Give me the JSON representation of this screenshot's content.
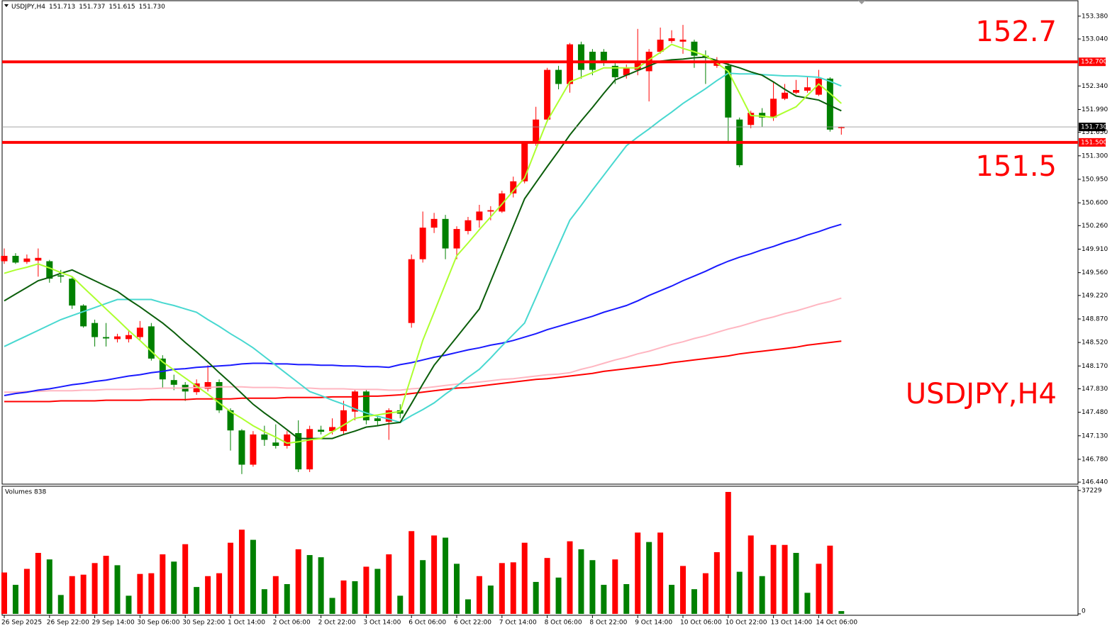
{
  "chart_data": [
    {
      "type": "candlestick",
      "title": "USDJPY,H4",
      "header_values": [
        "151.713",
        "151.737",
        "151.615",
        "151.730"
      ],
      "watermark": "USDJPY,H4",
      "categories": [
        "26 Sep 2025",
        null,
        null,
        null,
        "26 Sep 22:00",
        null,
        null,
        null,
        "29 Sep 14:00",
        null,
        null,
        null,
        "30 Sep 06:00",
        null,
        null,
        null,
        "30 Sep 22:00",
        null,
        null,
        null,
        "1 Oct 14:00",
        null,
        null,
        null,
        "2 Oct 06:00",
        null,
        null,
        null,
        "2 Oct 22:00",
        null,
        null,
        null,
        "3 Oct 14:00",
        null,
        null,
        null,
        "6 Oct 06:00",
        null,
        null,
        null,
        "6 Oct 22:00",
        null,
        null,
        null,
        "7 Oct 14:00",
        null,
        null,
        null,
        "8 Oct 06:00",
        null,
        null,
        null,
        "8 Oct 22:00",
        null,
        null,
        null,
        "9 Oct 14:00",
        null,
        null,
        null,
        "10 Oct 06:00",
        null,
        null,
        null,
        "10 Oct 22:00",
        null,
        null,
        null,
        "13 Oct 14:00",
        null,
        null,
        null,
        "14 Oct 06:00",
        null,
        null
      ],
      "open": [
        149.73,
        149.81,
        149.72,
        149.74,
        149.73,
        149.52,
        149.47,
        149.07,
        148.81,
        148.6,
        148.57,
        148.57,
        148.6,
        148.76,
        148.28,
        147.96,
        147.89,
        147.78,
        147.83,
        147.93,
        147.51,
        147.21,
        146.7,
        147.15,
        147.03,
        146.98,
        147.17,
        146.63,
        147.22,
        147.2,
        147.2,
        147.49,
        147.79,
        147.39,
        147.34,
        147.51,
        148.81,
        149.76,
        150.23,
        150.36,
        149.92,
        150.18,
        150.34,
        150.47,
        150.47,
        150.74,
        150.92,
        151.5,
        151.84,
        152.58,
        152.37,
        152.96,
        152.85,
        152.85,
        152.64,
        152.5,
        152.58,
        152.56,
        152.85,
        153.01,
        153.0,
        153.0,
        152.79,
        152.64,
        152.64,
        151.84,
        151.76,
        151.94,
        151.87,
        152.15,
        152.24,
        152.27,
        152.21,
        152.45,
        151.713
      ],
      "high": [
        149.92,
        149.85,
        149.83,
        149.92,
        149.75,
        149.6,
        149.5,
        149.09,
        148.86,
        148.81,
        148.65,
        148.7,
        148.84,
        148.81,
        148.33,
        148.04,
        147.93,
        147.97,
        148.18,
        147.97,
        147.54,
        147.23,
        147.2,
        147.28,
        147.3,
        147.2,
        147.36,
        147.28,
        147.28,
        147.39,
        147.65,
        147.81,
        147.83,
        147.44,
        147.54,
        147.6,
        149.83,
        150.47,
        150.45,
        150.42,
        150.25,
        150.39,
        150.57,
        150.55,
        150.78,
        150.99,
        151.52,
        152.03,
        152.61,
        152.64,
        152.98,
        153.0,
        152.89,
        152.89,
        152.68,
        152.66,
        153.19,
        152.89,
        153.21,
        153.17,
        153.25,
        153.03,
        152.87,
        152.77,
        152.68,
        151.87,
        151.97,
        152.01,
        152.4,
        152.37,
        152.43,
        152.47,
        152.58,
        152.47,
        151.737
      ],
      "low": [
        149.69,
        149.69,
        149.69,
        149.5,
        149.41,
        149.41,
        149.02,
        148.74,
        148.46,
        148.46,
        148.52,
        148.52,
        148.55,
        148.25,
        147.83,
        147.81,
        147.65,
        147.74,
        147.79,
        147.47,
        146.91,
        146.56,
        146.67,
        146.98,
        146.94,
        146.94,
        146.59,
        146.59,
        147.15,
        147.15,
        147.15,
        147.36,
        147.3,
        147.28,
        147.07,
        147.39,
        148.74,
        149.71,
        150.15,
        149.76,
        149.76,
        150.13,
        150.23,
        150.34,
        150.45,
        150.68,
        150.89,
        151.45,
        151.8,
        152.29,
        152.24,
        152.45,
        152.5,
        152.64,
        152.37,
        152.45,
        152.5,
        152.11,
        152.82,
        152.98,
        152.82,
        152.61,
        152.37,
        152.61,
        151.5,
        151.13,
        151.71,
        151.73,
        151.82,
        152.13,
        152.22,
        152.24,
        152.19,
        151.66,
        151.615
      ],
      "close": [
        149.81,
        149.71,
        149.77,
        149.78,
        149.47,
        149.5,
        149.07,
        148.76,
        148.6,
        148.58,
        148.61,
        148.63,
        148.74,
        148.28,
        147.97,
        147.89,
        147.79,
        147.91,
        147.93,
        147.51,
        147.21,
        146.7,
        147.15,
        147.07,
        146.98,
        147.15,
        146.63,
        147.23,
        147.19,
        147.26,
        147.51,
        147.79,
        147.36,
        147.35,
        147.51,
        147.46,
        149.76,
        150.23,
        150.36,
        149.92,
        150.21,
        150.34,
        150.47,
        150.49,
        150.74,
        150.92,
        151.5,
        151.84,
        152.58,
        152.37,
        152.96,
        152.58,
        152.58,
        152.71,
        152.47,
        152.61,
        152.68,
        152.85,
        153.03,
        153.05,
        153.03,
        152.79,
        152.77,
        152.7,
        151.87,
        151.16,
        151.94,
        151.87,
        152.15,
        152.24,
        152.28,
        152.32,
        152.45,
        151.69,
        151.73
      ],
      "up_color": "#ff0000",
      "down_color": "#008000",
      "series": [
        {
          "color": "#ffb6c1",
          "values": [
            147.78,
            147.78,
            147.79,
            147.79,
            147.8,
            147.8,
            147.8,
            147.81,
            147.81,
            147.82,
            147.82,
            147.82,
            147.83,
            147.83,
            147.84,
            147.84,
            147.84,
            147.85,
            147.85,
            147.86,
            147.86,
            147.86,
            147.85,
            147.85,
            147.85,
            147.84,
            147.84,
            147.84,
            147.83,
            147.83,
            147.83,
            147.82,
            147.82,
            147.82,
            147.81,
            147.81,
            147.83,
            147.84,
            147.86,
            147.88,
            147.9,
            147.91,
            147.93,
            147.95,
            147.97,
            147.98,
            148.0,
            148.02,
            148.04,
            148.05,
            148.07,
            148.12,
            148.16,
            148.21,
            148.26,
            148.3,
            148.35,
            148.39,
            148.44,
            148.49,
            148.53,
            148.58,
            148.62,
            148.67,
            148.72,
            148.76,
            148.81,
            148.86,
            148.9,
            148.95,
            148.99,
            149.04,
            149.09,
            149.13,
            149.18
          ]
        },
        {
          "color": "#ff0000",
          "values": [
            147.64,
            147.64,
            147.64,
            147.64,
            147.64,
            147.65,
            147.65,
            147.65,
            147.65,
            147.66,
            147.66,
            147.66,
            147.66,
            147.67,
            147.67,
            147.67,
            147.67,
            147.68,
            147.68,
            147.68,
            147.68,
            147.69,
            147.69,
            147.69,
            147.69,
            147.7,
            147.7,
            147.7,
            147.7,
            147.71,
            147.71,
            147.71,
            147.72,
            147.72,
            147.73,
            147.74,
            147.76,
            147.78,
            147.8,
            147.82,
            147.84,
            147.85,
            147.87,
            147.89,
            147.91,
            147.93,
            147.95,
            147.97,
            147.98,
            148.0,
            148.02,
            148.04,
            148.06,
            148.09,
            148.11,
            148.13,
            148.15,
            148.17,
            148.19,
            148.22,
            148.24,
            148.26,
            148.28,
            148.3,
            148.32,
            148.35,
            148.37,
            148.39,
            148.41,
            148.43,
            148.45,
            148.48,
            148.5,
            148.52,
            148.54
          ]
        },
        {
          "color": "#1a1aff",
          "values": [
            147.73,
            147.76,
            147.78,
            147.81,
            147.83,
            147.86,
            147.89,
            147.91,
            147.94,
            147.96,
            147.99,
            148.02,
            148.04,
            148.07,
            148.09,
            148.12,
            148.13,
            148.15,
            148.16,
            148.17,
            148.18,
            148.2,
            148.21,
            148.21,
            148.2,
            148.2,
            148.19,
            148.19,
            148.18,
            148.18,
            148.17,
            148.17,
            148.16,
            148.16,
            148.15,
            148.19,
            148.22,
            148.26,
            148.3,
            148.33,
            148.37,
            148.41,
            148.44,
            148.48,
            148.51,
            148.55,
            148.6,
            148.65,
            148.71,
            148.76,
            148.81,
            148.86,
            148.91,
            148.97,
            149.02,
            149.07,
            149.14,
            149.22,
            149.29,
            149.36,
            149.44,
            149.51,
            149.58,
            149.66,
            149.73,
            149.79,
            149.84,
            149.9,
            149.95,
            150.01,
            150.06,
            150.12,
            150.17,
            150.23,
            150.28
          ]
        },
        {
          "color": "#48d8d0",
          "values": [
            148.46,
            148.54,
            148.62,
            148.7,
            148.78,
            148.86,
            148.92,
            148.98,
            149.04,
            149.1,
            149.16,
            149.16,
            149.16,
            149.16,
            149.11,
            149.07,
            149.02,
            148.97,
            148.86,
            148.76,
            148.65,
            148.55,
            148.44,
            148.31,
            148.18,
            148.05,
            147.92,
            147.79,
            147.73,
            147.66,
            147.6,
            147.53,
            147.47,
            147.42,
            147.38,
            147.33,
            147.43,
            147.52,
            147.62,
            147.75,
            147.87,
            148.0,
            148.12,
            148.29,
            148.47,
            148.64,
            148.81,
            149.19,
            149.58,
            149.96,
            150.34,
            150.56,
            150.79,
            151.01,
            151.23,
            151.45,
            151.58,
            151.7,
            151.83,
            151.95,
            152.08,
            152.19,
            152.3,
            152.42,
            152.53,
            152.52,
            152.52,
            152.51,
            152.5,
            152.49,
            152.49,
            152.48,
            152.47,
            152.41,
            152.34
          ]
        },
        {
          "color": "#0b5e0b",
          "values": [
            149.14,
            149.24,
            149.34,
            149.44,
            149.49,
            149.55,
            149.6,
            149.52,
            149.44,
            149.36,
            149.28,
            149.16,
            149.05,
            148.93,
            148.81,
            148.67,
            148.52,
            148.38,
            148.23,
            148.07,
            147.92,
            147.76,
            147.6,
            147.47,
            147.35,
            147.22,
            147.09,
            147.09,
            147.09,
            147.09,
            147.15,
            147.2,
            147.26,
            147.28,
            147.31,
            147.33,
            147.61,
            147.9,
            148.18,
            148.39,
            148.6,
            148.81,
            149.02,
            149.43,
            149.84,
            150.25,
            150.66,
            150.9,
            151.14,
            151.37,
            151.61,
            151.82,
            152.02,
            152.23,
            152.43,
            152.5,
            152.57,
            152.64,
            152.71,
            152.73,
            152.74,
            152.76,
            152.77,
            152.72,
            152.66,
            152.61,
            152.55,
            152.5,
            152.4,
            152.29,
            152.19,
            152.16,
            152.13,
            152.05,
            151.97
          ]
        },
        {
          "color": "#adff2f",
          "values": [
            149.55,
            149.6,
            149.64,
            149.69,
            149.63,
            149.56,
            149.5,
            149.34,
            149.18,
            149.02,
            148.86,
            148.7,
            148.55,
            148.39,
            148.23,
            148.11,
            147.99,
            147.87,
            147.75,
            147.62,
            147.49,
            147.39,
            147.28,
            147.19,
            147.11,
            147.02,
            147.04,
            147.07,
            147.09,
            147.19,
            147.29,
            147.39,
            147.42,
            147.44,
            147.47,
            147.49,
            148.02,
            148.55,
            148.97,
            149.39,
            149.81,
            150.0,
            150.2,
            150.39,
            150.58,
            150.78,
            150.97,
            151.4,
            151.82,
            152.11,
            152.4,
            152.47,
            152.54,
            152.61,
            152.61,
            152.61,
            152.61,
            152.73,
            152.84,
            152.96,
            152.9,
            152.85,
            152.79,
            152.68,
            152.56,
            152.23,
            151.9,
            151.89,
            151.87,
            151.95,
            152.03,
            152.2,
            152.37,
            152.23,
            152.08
          ]
        }
      ],
      "ylim": [
        146.41,
        153.61
      ],
      "yticks": [
        {
          "value": 153.38,
          "label": "153.380"
        },
        {
          "value": 153.04,
          "label": "153.040"
        },
        {
          "value": 152.34,
          "label": "152.340"
        },
        {
          "value": 151.99,
          "label": "151.990"
        },
        {
          "value": 151.65,
          "label": "151.650"
        },
        {
          "value": 151.3,
          "label": "151.300"
        },
        {
          "value": 150.95,
          "label": "150.950"
        },
        {
          "value": 150.6,
          "label": "150.600"
        },
        {
          "value": 150.26,
          "label": "150.260"
        },
        {
          "value": 149.91,
          "label": "149.910"
        },
        {
          "value": 149.56,
          "label": "149.560"
        },
        {
          "value": 149.22,
          "label": "149.220"
        },
        {
          "value": 148.87,
          "label": "148.870"
        },
        {
          "value": 148.52,
          "label": "148.520"
        },
        {
          "value": 148.17,
          "label": "148.170"
        },
        {
          "value": 147.83,
          "label": "147.830"
        },
        {
          "value": 147.48,
          "label": "147.480"
        },
        {
          "value": 147.13,
          "label": "147.130"
        },
        {
          "value": 146.78,
          "label": "146.780"
        },
        {
          "value": 146.44,
          "label": "146.440"
        }
      ],
      "levels": [
        {
          "value": 152.7,
          "label": "152.700"
        },
        {
          "value": 151.5,
          "label": "151.500"
        }
      ],
      "level_color": "#ff0000",
      "current_price": {
        "value": 151.73,
        "label": "151.730"
      }
    },
    {
      "type": "bar",
      "title": "Volumes 838",
      "values": [
        12483,
        8760,
        13578,
        18396,
        16425,
        5694,
        11388,
        11826,
        15330,
        17520,
        14673,
        5475,
        12045,
        12264,
        17958,
        15768,
        21024,
        8103,
        11388,
        12264,
        21462,
        25404,
        22338,
        7446,
        11388,
        8979,
        19491,
        17739,
        17082,
        4818,
        10074,
        9855,
        14235,
        13578,
        17958,
        5475,
        24966,
        16206,
        23652,
        22995,
        15111,
        4380,
        11388,
        8541,
        15330,
        15549,
        21462,
        9636,
        16863,
        10950,
        21900,
        19491,
        16206,
        8760,
        16425,
        8979,
        24528,
        21681,
        24528,
        8760,
        14454,
        7446,
        12264,
        18615,
        36792,
        12702,
        23652,
        11388,
        20805,
        20805,
        18396,
        6351,
        15111,
        20586,
        838
      ],
      "rise_color": "#ff0000",
      "fall_color": "#008000",
      "ylim": [
        0,
        38500
      ],
      "yticks": [
        37229,
        0
      ]
    }
  ]
}
